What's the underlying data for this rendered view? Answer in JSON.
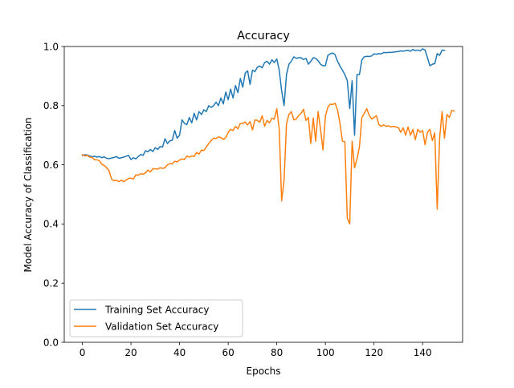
{
  "chart_data": {
    "type": "line",
    "title": "Accuracy",
    "xlabel": "Epochs",
    "ylabel": "Model Accuracy of Classification",
    "xlim": [
      -7.45,
      156.45
    ],
    "ylim": [
      0.0,
      1.0
    ],
    "xticks": [
      0,
      20,
      40,
      60,
      80,
      100,
      120,
      140
    ],
    "yticks": [
      0.0,
      0.2,
      0.4,
      0.6,
      0.8,
      1.0
    ],
    "xtick_labels": [
      "0",
      "20",
      "40",
      "60",
      "80",
      "100",
      "120",
      "140"
    ],
    "ytick_labels": [
      "0.0",
      "0.2",
      "0.4",
      "0.6",
      "0.8",
      "1.0"
    ],
    "grid": false,
    "legend_position": "lower-left",
    "series": [
      {
        "name": "Training Set Accuracy",
        "color": "#1f77b4",
        "values": [
          0.632,
          0.634,
          0.633,
          0.63,
          0.627,
          0.629,
          0.626,
          0.628,
          0.624,
          0.627,
          0.622,
          0.621,
          0.623,
          0.625,
          0.628,
          0.622,
          0.624,
          0.626,
          0.629,
          0.632,
          0.618,
          0.624,
          0.62,
          0.628,
          0.635,
          0.632,
          0.648,
          0.644,
          0.652,
          0.645,
          0.658,
          0.652,
          0.662,
          0.66,
          0.688,
          0.672,
          0.681,
          0.683,
          0.716,
          0.69,
          0.7,
          0.752,
          0.74,
          0.736,
          0.76,
          0.742,
          0.774,
          0.752,
          0.78,
          0.77,
          0.786,
          0.78,
          0.8,
          0.794,
          0.8,
          0.812,
          0.8,
          0.826,
          0.806,
          0.846,
          0.82,
          0.856,
          0.826,
          0.868,
          0.844,
          0.892,
          0.862,
          0.91,
          0.918,
          0.872,
          0.92,
          0.915,
          0.93,
          0.934,
          0.928,
          0.946,
          0.95,
          0.94,
          0.955,
          0.946,
          0.958,
          0.92,
          0.85,
          0.8,
          0.906,
          0.94,
          0.95,
          0.965,
          0.96,
          0.962,
          0.962,
          0.956,
          0.96,
          0.94,
          0.95,
          0.962,
          0.96,
          0.952,
          0.94,
          0.935,
          0.935,
          0.97,
          0.975,
          0.978,
          0.972,
          0.95,
          0.934,
          0.92,
          0.905,
          0.885,
          0.79,
          0.884,
          0.7,
          0.905,
          0.905,
          0.955,
          0.965,
          0.967,
          0.966,
          0.968,
          0.975,
          0.974,
          0.976,
          0.975,
          0.98,
          0.979,
          0.98,
          0.98,
          0.981,
          0.982,
          0.983,
          0.985,
          0.984,
          0.986,
          0.987,
          0.984,
          0.99,
          0.986,
          0.988,
          0.985,
          0.992,
          0.988,
          0.962,
          0.935,
          0.94,
          0.942,
          0.976,
          0.97,
          0.988,
          0.987
        ]
      },
      {
        "name": "Validation Set Accuracy",
        "color": "#ff7f0e",
        "values": [
          0.634,
          0.63,
          0.632,
          0.626,
          0.625,
          0.617,
          0.617,
          0.614,
          0.602,
          0.598,
          0.59,
          0.58,
          0.552,
          0.546,
          0.548,
          0.543,
          0.548,
          0.543,
          0.548,
          0.554,
          0.555,
          0.552,
          0.566,
          0.565,
          0.57,
          0.568,
          0.573,
          0.582,
          0.576,
          0.587,
          0.586,
          0.586,
          0.59,
          0.588,
          0.59,
          0.6,
          0.604,
          0.603,
          0.612,
          0.61,
          0.616,
          0.62,
          0.618,
          0.63,
          0.626,
          0.63,
          0.628,
          0.642,
          0.636,
          0.65,
          0.648,
          0.66,
          0.672,
          0.682,
          0.69,
          0.689,
          0.694,
          0.692,
          0.686,
          0.692,
          0.71,
          0.72,
          0.716,
          0.73,
          0.722,
          0.74,
          0.74,
          0.745,
          0.735,
          0.746,
          0.718,
          0.752,
          0.75,
          0.744,
          0.766,
          0.73,
          0.75,
          0.742,
          0.758,
          0.755,
          0.79,
          0.72,
          0.478,
          0.55,
          0.74,
          0.77,
          0.78,
          0.752,
          0.755,
          0.766,
          0.774,
          0.788,
          0.75,
          0.76,
          0.672,
          0.758,
          0.68,
          0.78,
          0.72,
          0.65,
          0.764,
          0.795,
          0.805,
          0.804,
          0.808,
          0.785,
          0.74,
          0.68,
          0.678,
          0.42,
          0.4,
          0.68,
          0.59,
          0.62,
          0.66,
          0.76,
          0.774,
          0.79,
          0.768,
          0.755,
          0.76,
          0.766,
          0.736,
          0.73,
          0.735,
          0.73,
          0.732,
          0.728,
          0.73,
          0.728,
          0.726,
          0.71,
          0.725,
          0.7,
          0.728,
          0.7,
          0.72,
          0.685,
          0.72,
          0.71,
          0.716,
          0.668,
          0.71,
          0.72,
          0.682,
          0.708,
          0.45,
          0.69,
          0.78,
          0.69,
          0.77,
          0.76,
          0.784,
          0.782
        ]
      }
    ]
  }
}
